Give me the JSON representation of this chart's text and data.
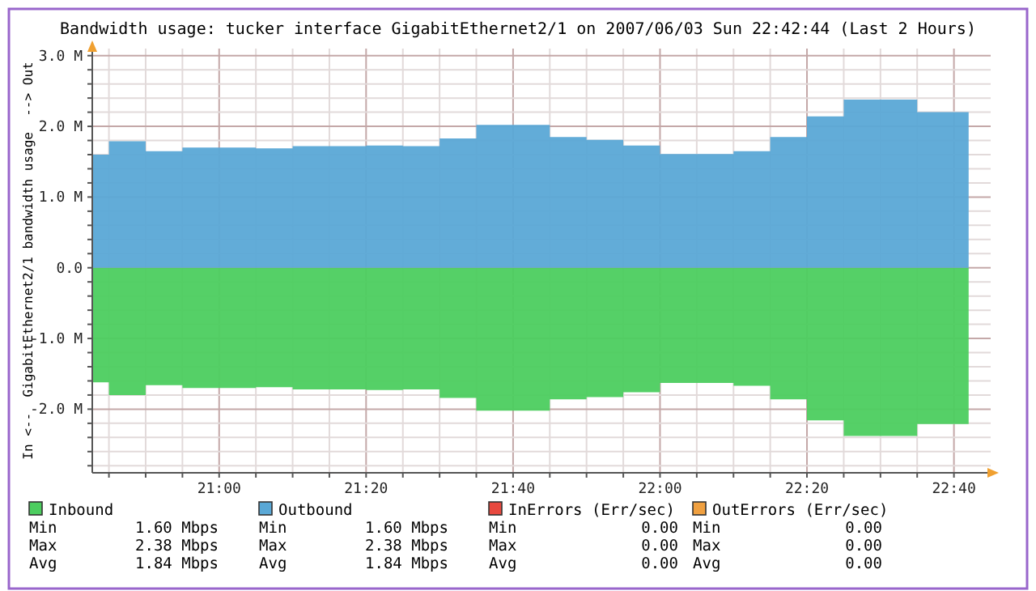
{
  "chart_data": {
    "type": "area",
    "title": "Bandwidth usage: tucker interface GigabitEthernet2/1 on 2007/06/03 Sun 22:42:44 (Last 2 Hours)",
    "ylabel": "In <--  GigabitEthernet2/1 bandwidth usage  --> Out",
    "x": [
      20.7122,
      20.75,
      20.8333,
      20.9167,
      21,
      21.0833,
      21.1667,
      21.25,
      21.3333,
      21.4167,
      21.5,
      21.5833,
      21.6667,
      21.75,
      21.8333,
      21.9167,
      22,
      22.0833,
      22.1667,
      22.25,
      22.3333,
      22.4167,
      22.5,
      22.5833,
      22.7
    ],
    "series": [
      {
        "name": "Inbound",
        "color": "#4ccd5f",
        "values": [
          -1.62,
          -1.8,
          -1.66,
          -1.7,
          -1.7,
          -1.69,
          -1.72,
          -1.72,
          -1.73,
          -1.72,
          -1.84,
          -2.02,
          -2.02,
          -1.86,
          -1.83,
          -1.76,
          -1.63,
          -1.63,
          -1.67,
          -1.86,
          -2.16,
          -2.38,
          -2.38,
          -2.21,
          -2.21
        ]
      },
      {
        "name": "Outbound",
        "color": "#5aa8d6",
        "values": [
          1.6,
          1.79,
          1.65,
          1.7,
          1.7,
          1.69,
          1.72,
          1.72,
          1.73,
          1.72,
          1.83,
          2.02,
          2.02,
          1.85,
          1.81,
          1.73,
          1.61,
          1.61,
          1.65,
          1.85,
          2.14,
          2.38,
          2.38,
          2.2,
          2.2
        ]
      },
      {
        "name": "InErrors (Err/sec)",
        "color": "#e8493f",
        "values": [
          null,
          null,
          null,
          null,
          null,
          null,
          null,
          null,
          null,
          null,
          null,
          null,
          null,
          null,
          null,
          null,
          null,
          null,
          null,
          null,
          null,
          null,
          null,
          null,
          null
        ]
      },
      {
        "name": "OutErrors (Err/sec)",
        "color": "#f0a040",
        "values": [
          null,
          null,
          null,
          null,
          null,
          null,
          null,
          null,
          null,
          null,
          null,
          null,
          null,
          null,
          null,
          null,
          null,
          null,
          null,
          null,
          null,
          null,
          null,
          null,
          null
        ]
      }
    ],
    "xlim": [
      20.7122,
      22.75
    ],
    "xticks": [
      {
        "value": 20.75,
        "label": null
      },
      {
        "value": 20.8333,
        "label": null
      },
      {
        "value": 20.9167,
        "label": null
      },
      {
        "value": 21,
        "label": "21:00"
      },
      {
        "value": 21.0833,
        "label": null
      },
      {
        "value": 21.1667,
        "label": null
      },
      {
        "value": 21.25,
        "label": null
      },
      {
        "value": 21.3333,
        "label": "21:20"
      },
      {
        "value": 21.4167,
        "label": null
      },
      {
        "value": 21.5,
        "label": null
      },
      {
        "value": 21.5833,
        "label": null
      },
      {
        "value": 21.6667,
        "label": "21:40"
      },
      {
        "value": 21.75,
        "label": null
      },
      {
        "value": 21.8333,
        "label": null
      },
      {
        "value": 21.9167,
        "label": null
      },
      {
        "value": 22,
        "label": "22:00"
      },
      {
        "value": 22.0833,
        "label": null
      },
      {
        "value": 22.1667,
        "label": null
      },
      {
        "value": 22.25,
        "label": null
      },
      {
        "value": 22.3333,
        "label": "22:20"
      },
      {
        "value": 22.4167,
        "label": null
      },
      {
        "value": 22.5,
        "label": null
      },
      {
        "value": 22.5833,
        "label": null
      },
      {
        "value": 22.6667,
        "label": "22:40"
      }
    ],
    "ylim": [
      -2.9,
      3.1
    ],
    "yticks": [
      {
        "value": -2.8,
        "label": null
      },
      {
        "value": -2.6,
        "label": null
      },
      {
        "value": -2.4,
        "label": null
      },
      {
        "value": -2.2,
        "label": null
      },
      {
        "value": -2,
        "label": "-2.0 M"
      },
      {
        "value": -1.8,
        "label": null
      },
      {
        "value": -1.6,
        "label": null
      },
      {
        "value": -1.4,
        "label": null
      },
      {
        "value": -1.2,
        "label": null
      },
      {
        "value": -1,
        "label": "-1.0 M"
      },
      {
        "value": -0.8,
        "label": null
      },
      {
        "value": -0.6,
        "label": null
      },
      {
        "value": -0.4,
        "label": null
      },
      {
        "value": -0.2,
        "label": null
      },
      {
        "value": 0,
        "label": "0.0"
      },
      {
        "value": 0.2,
        "label": null
      },
      {
        "value": 0.4,
        "label": null
      },
      {
        "value": 0.6,
        "label": null
      },
      {
        "value": 0.8,
        "label": null
      },
      {
        "value": 1,
        "label": "1.0 M"
      },
      {
        "value": 1.2,
        "label": null
      },
      {
        "value": 1.4,
        "label": null
      },
      {
        "value": 1.6,
        "label": null
      },
      {
        "value": 1.8,
        "label": null
      },
      {
        "value": 2,
        "label": "2.0 M"
      },
      {
        "value": 2.2,
        "label": null
      },
      {
        "value": 2.4,
        "label": null
      },
      {
        "value": 2.6,
        "label": null
      },
      {
        "value": 2.8,
        "label": null
      },
      {
        "value": 3,
        "label": "3.0 M"
      }
    ],
    "grid": true,
    "legend": "bottom",
    "annotations": [
      "Min",
      "1.60 Mbps",
      "Max",
      "2.38 Mbps",
      "Avg",
      "1.84 Mbps",
      "Min",
      "1.60 Mbps",
      "Max",
      "2.38 Mbps",
      "Avg",
      "1.84 Mbps",
      "Min",
      "0.00",
      "Max",
      "0.00",
      "Avg",
      "0.00",
      "Min",
      "0.00",
      "Max",
      "0.00",
      "Avg",
      "0.00"
    ]
  }
}
